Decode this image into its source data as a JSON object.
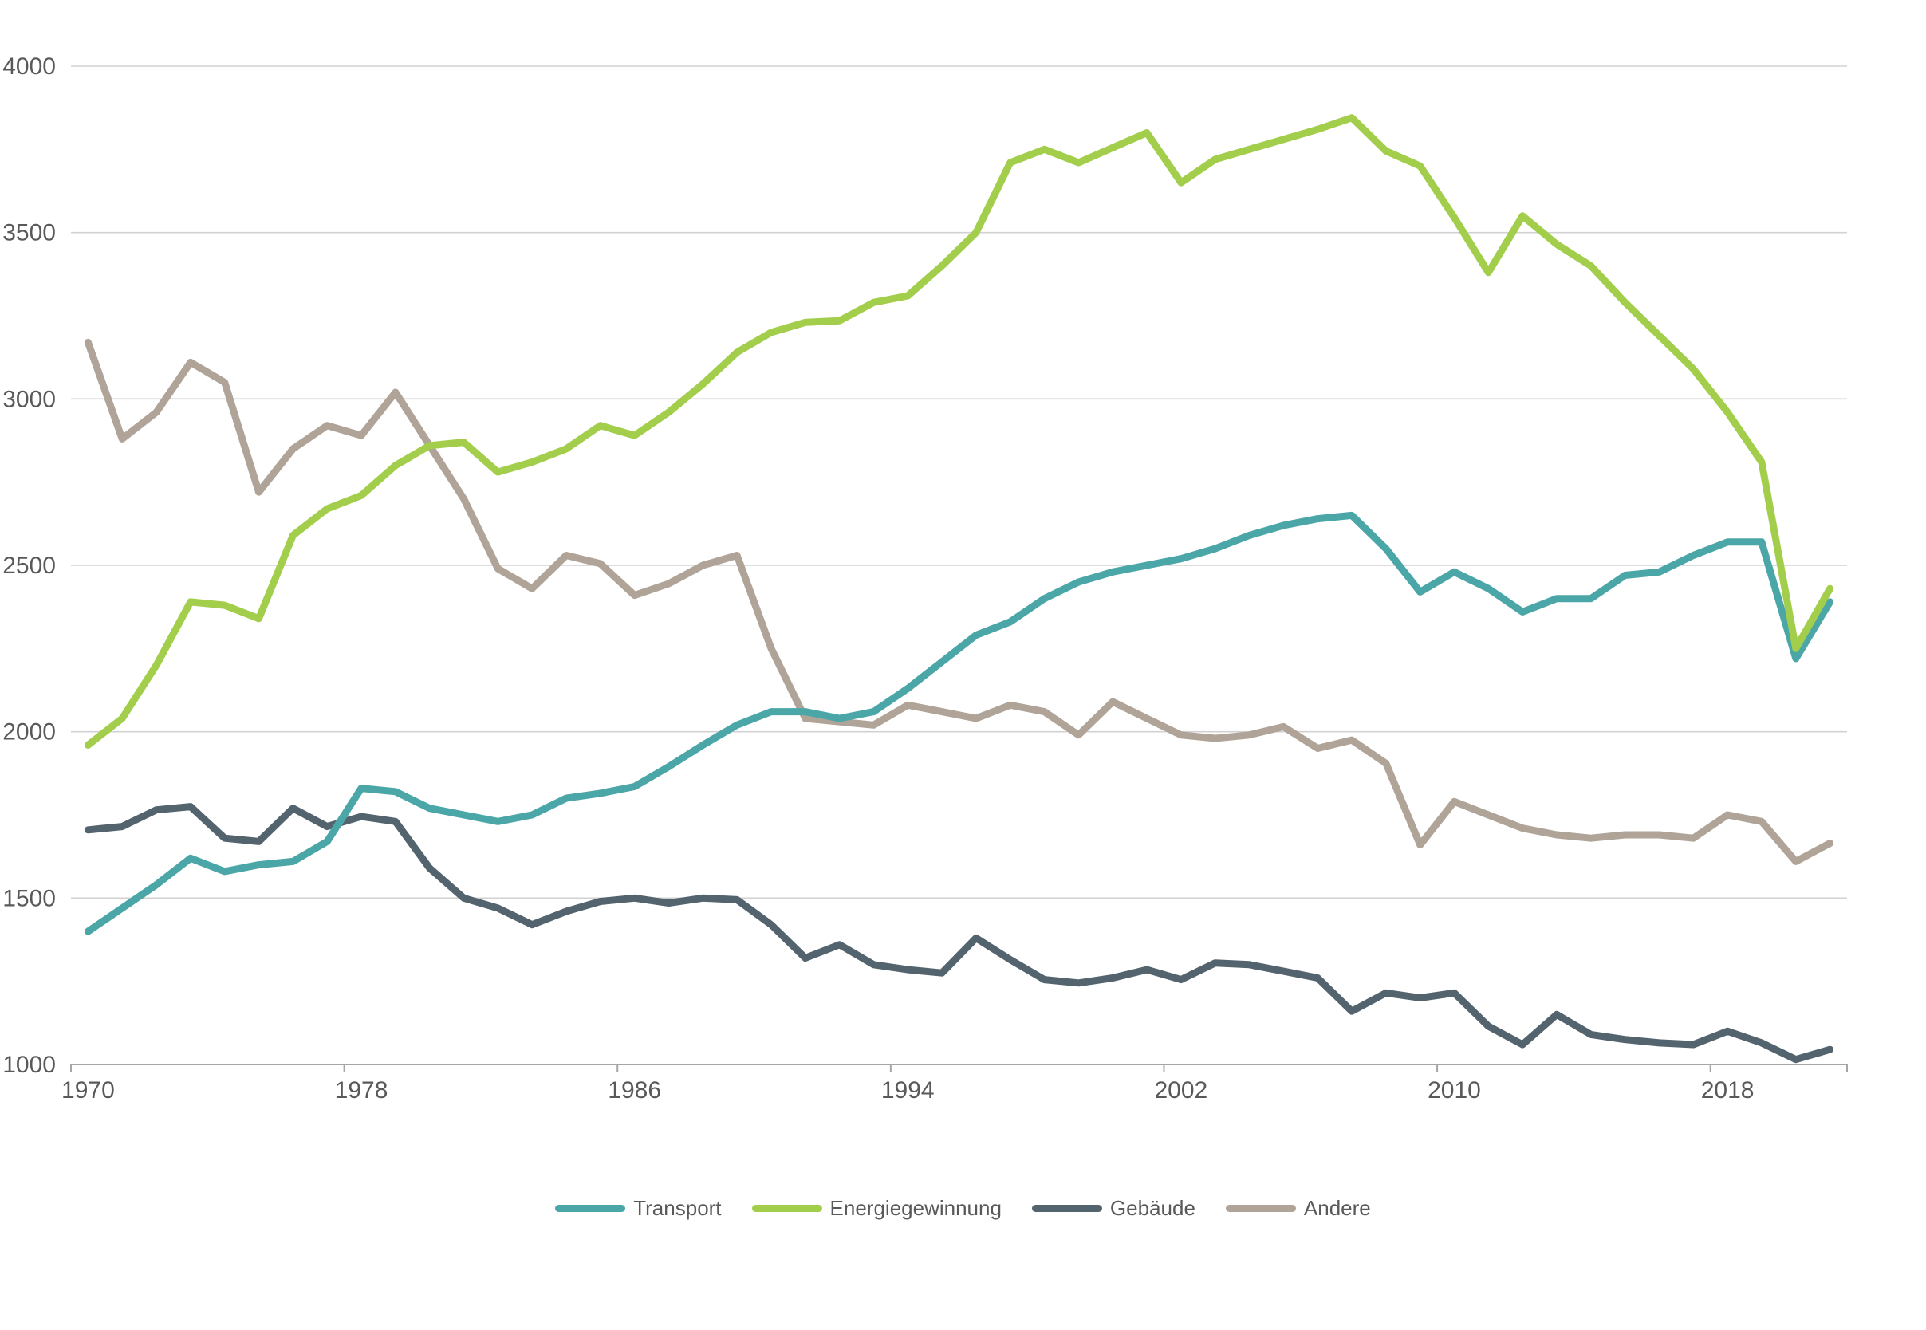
{
  "chart_data": {
    "type": "line",
    "title": "",
    "xlabel": "",
    "ylabel": "",
    "grid": "horizontal",
    "legend_position": "bottom",
    "ylim": [
      1000,
      4000
    ],
    "y_ticks": [
      1000,
      1500,
      2000,
      2500,
      3000,
      3500,
      4000
    ],
    "y_tick_labels": [
      "1000",
      "1500",
      "2000",
      "2500",
      "3000",
      "3500",
      "4000"
    ],
    "x_label_years": [
      1970,
      1978,
      1986,
      1994,
      2002,
      2010,
      2018
    ],
    "x_tick_labels": [
      "1970",
      "1978",
      "1986",
      "1994",
      "2002",
      "2010",
      "2018"
    ],
    "axis_text_color": "#595959",
    "x": [
      1970,
      1971,
      1972,
      1973,
      1974,
      1975,
      1976,
      1977,
      1978,
      1979,
      1980,
      1981,
      1982,
      1983,
      1984,
      1985,
      1986,
      1987,
      1988,
      1989,
      1990,
      1991,
      1992,
      1993,
      1994,
      1995,
      1996,
      1997,
      1998,
      1999,
      2000,
      2001,
      2002,
      2003,
      2004,
      2005,
      2006,
      2007,
      2008,
      2009,
      2010,
      2011,
      2012,
      2013,
      2014,
      2015,
      2016,
      2017,
      2018,
      2019,
      2020,
      2021
    ],
    "series": [
      {
        "name": "Transport",
        "id": "transport",
        "color": "#4AA6A7",
        "values": [
          1400,
          1470,
          1540,
          1620,
          1580,
          1600,
          1610,
          1670,
          1830,
          1820,
          1770,
          1750,
          1730,
          1750,
          1800,
          1815,
          1835,
          1895,
          1960,
          2020,
          2060,
          2060,
          2040,
          2060,
          2130,
          2210,
          2290,
          2330,
          2400,
          2450,
          2480,
          2500,
          2520,
          2550,
          2590,
          2620,
          2640,
          2650,
          2550,
          2420,
          2480,
          2430,
          2360,
          2400,
          2400,
          2470,
          2480,
          2530,
          2570,
          2570,
          2220,
          2390
        ]
      },
      {
        "name": "Energiegewinnung",
        "id": "energiegewinnung",
        "color": "#A2CE4C",
        "values": [
          1960,
          2040,
          2200,
          2390,
          2380,
          2340,
          2590,
          2670,
          2710,
          2800,
          2860,
          2870,
          2780,
          2810,
          2850,
          2920,
          2890,
          2960,
          3045,
          3140,
          3200,
          3230,
          3235,
          3290,
          3310,
          3400,
          3500,
          3710,
          3750,
          3710,
          3755,
          3800,
          3650,
          3720,
          3750,
          3780,
          3810,
          3845,
          3745,
          3700,
          3545,
          3380,
          3550,
          3465,
          3400,
          3290,
          3190,
          3090,
          2960,
          2810,
          2250,
          2430
        ]
      },
      {
        "name": "Gebäude",
        "id": "gebaeude",
        "color": "#53646E",
        "values": [
          1705,
          1715,
          1765,
          1775,
          1680,
          1670,
          1770,
          1715,
          1745,
          1730,
          1590,
          1500,
          1470,
          1420,
          1460,
          1490,
          1500,
          1485,
          1500,
          1495,
          1420,
          1320,
          1360,
          1300,
          1285,
          1275,
          1380,
          1315,
          1255,
          1245,
          1260,
          1285,
          1255,
          1305,
          1300,
          1280,
          1260,
          1160,
          1215,
          1200,
          1215,
          1115,
          1060,
          1150,
          1090,
          1075,
          1065,
          1060,
          1100,
          1065,
          1015,
          1045
        ]
      },
      {
        "name": "Andere",
        "id": "andere",
        "color": "#AFA497",
        "values": [
          3170,
          2880,
          2960,
          3110,
          3050,
          2720,
          2850,
          2920,
          2890,
          3020,
          2860,
          2700,
          2490,
          2430,
          2530,
          2505,
          2410,
          2445,
          2500,
          2530,
          2250,
          2040,
          2030,
          2020,
          2080,
          2060,
          2040,
          2080,
          2060,
          1990,
          2090,
          2040,
          1990,
          1980,
          1990,
          2015,
          1950,
          1975,
          1905,
          1660,
          1790,
          1750,
          1710,
          1690,
          1680,
          1690,
          1690,
          1680,
          1750,
          1730,
          1610,
          1665
        ]
      }
    ]
  }
}
